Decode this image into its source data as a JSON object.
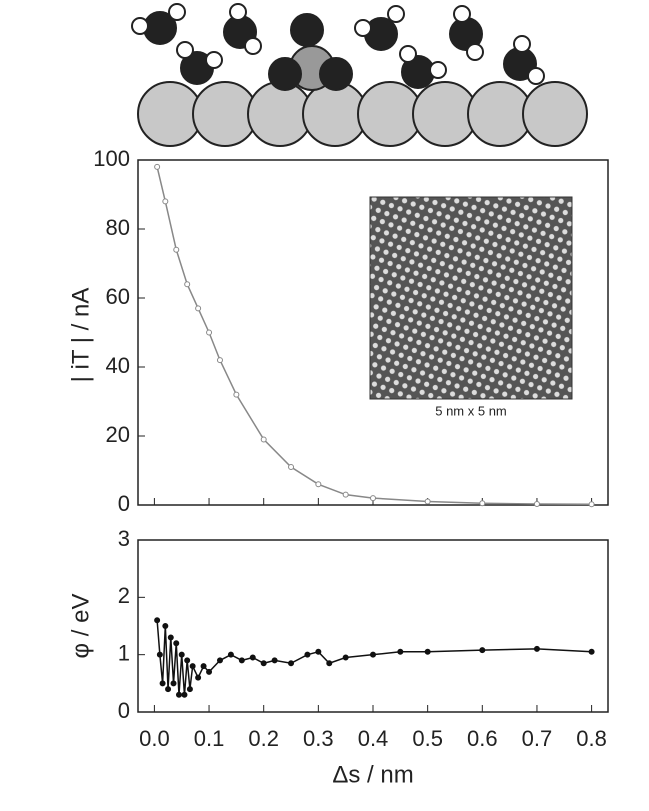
{
  "chart_data": [
    {
      "type": "line",
      "ylabel": "| iT | / nA",
      "inset_label": "5 nm x 5 nm",
      "xlim": [
        -0.03,
        0.83
      ],
      "ylim": [
        0,
        100
      ],
      "yticks": [
        0,
        20,
        40,
        60,
        80,
        100
      ],
      "series": [
        {
          "color": "#888888",
          "x": [
            0.005,
            0.02,
            0.04,
            0.06,
            0.08,
            0.1,
            0.12,
            0.15,
            0.2,
            0.25,
            0.3,
            0.35,
            0.4,
            0.5,
            0.6,
            0.7,
            0.8
          ],
          "values": [
            98,
            88,
            74,
            64,
            57,
            50,
            42,
            32,
            19,
            11,
            6,
            3,
            2,
            1,
            0.5,
            0.3,
            0.2
          ]
        }
      ]
    },
    {
      "type": "line",
      "xlabel": "Δs / nm",
      "ylabel": "φ / eV",
      "xlim": [
        -0.03,
        0.83
      ],
      "xticks": [
        {
          "value": 0,
          "label": "0.0"
        },
        0.1,
        0.2,
        0.3,
        0.4,
        0.5,
        0.6,
        0.7,
        0.8
      ],
      "ylim": [
        0,
        3
      ],
      "yticks": [
        0,
        1,
        2,
        3
      ],
      "series": [
        {
          "color": "#111111",
          "x": [
            0.005,
            0.01,
            0.015,
            0.02,
            0.025,
            0.03,
            0.035,
            0.04,
            0.045,
            0.05,
            0.055,
            0.06,
            0.065,
            0.07,
            0.08,
            0.09,
            0.1,
            0.12,
            0.14,
            0.16,
            0.18,
            0.2,
            0.22,
            0.25,
            0.28,
            0.3,
            0.32,
            0.35,
            0.4,
            0.45,
            0.5,
            0.6,
            0.7,
            0.8
          ],
          "values": [
            1.6,
            1.0,
            0.5,
            1.5,
            0.4,
            1.3,
            0.5,
            1.2,
            0.3,
            1.0,
            0.3,
            0.9,
            0.4,
            0.8,
            0.6,
            0.8,
            0.7,
            0.9,
            1.0,
            0.9,
            0.95,
            0.85,
            0.9,
            0.85,
            1.0,
            1.05,
            0.85,
            0.95,
            1.0,
            1.05,
            1.05,
            1.08,
            1.1,
            1.05
          ]
        }
      ]
    }
  ]
}
